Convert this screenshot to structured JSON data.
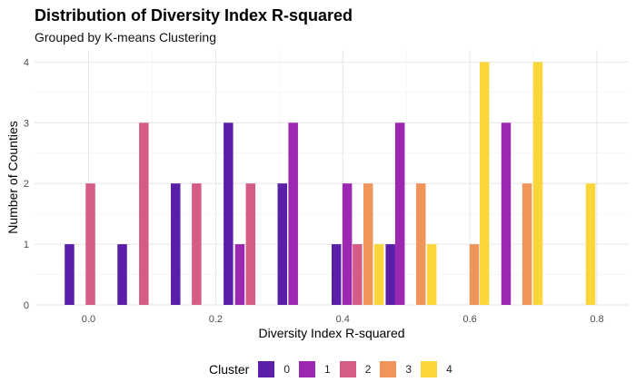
{
  "chart_data": {
    "type": "bar",
    "title": "Distribution of Diversity Index R-squared",
    "subtitle": "Grouped by K-means Clustering",
    "xlabel": "Diversity Index R-squared",
    "ylabel": "Number of Counties",
    "xlim": [
      -0.085,
      0.85
    ],
    "ylim": [
      0,
      4.2
    ],
    "xticks": [
      0.0,
      0.2,
      0.4,
      0.6,
      0.8
    ],
    "xtick_labels": [
      "0.0",
      "0.2",
      "0.4",
      "0.6",
      "0.8"
    ],
    "yticks": [
      0,
      1,
      2,
      3,
      4
    ],
    "ytick_labels": [
      "0",
      "1",
      "2",
      "3",
      "4"
    ],
    "grid": true,
    "legend": {
      "title": "Cluster",
      "position": "bottom"
    },
    "series": [
      {
        "name": "0",
        "color": "#5a1ea8",
        "points": [
          {
            "x": -0.03,
            "y": 1
          },
          {
            "x": 0.053,
            "y": 1
          },
          {
            "x": 0.137,
            "y": 2
          },
          {
            "x": 0.22,
            "y": 3
          },
          {
            "x": 0.305,
            "y": 2
          },
          {
            "x": 0.39,
            "y": 1
          },
          {
            "x": 0.475,
            "y": 1
          }
        ]
      },
      {
        "name": "1",
        "color": "#9c27b0",
        "points": [
          {
            "x": 0.238,
            "y": 1
          },
          {
            "x": 0.322,
            "y": 3
          },
          {
            "x": 0.407,
            "y": 2
          },
          {
            "x": 0.49,
            "y": 3
          },
          {
            "x": 0.657,
            "y": 3
          }
        ]
      },
      {
        "name": "2",
        "color": "#d45c86",
        "points": [
          {
            "x": 0.003,
            "y": 2
          },
          {
            "x": 0.087,
            "y": 3
          },
          {
            "x": 0.17,
            "y": 2
          },
          {
            "x": 0.255,
            "y": 2
          },
          {
            "x": 0.423,
            "y": 1
          }
        ]
      },
      {
        "name": "3",
        "color": "#f0955a",
        "points": [
          {
            "x": 0.44,
            "y": 2
          },
          {
            "x": 0.523,
            "y": 2
          },
          {
            "x": 0.607,
            "y": 1
          },
          {
            "x": 0.69,
            "y": 2
          }
        ]
      },
      {
        "name": "4",
        "color": "#fbd63b",
        "points": [
          {
            "x": 0.457,
            "y": 1
          },
          {
            "x": 0.54,
            "y": 1
          },
          {
            "x": 0.623,
            "y": 4
          },
          {
            "x": 0.707,
            "y": 4
          },
          {
            "x": 0.79,
            "y": 2
          }
        ]
      }
    ]
  }
}
